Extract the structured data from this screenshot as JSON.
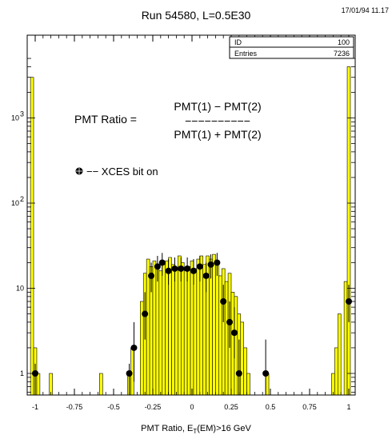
{
  "chart_data": {
    "type": "histogram",
    "title": "Run 54580, L=0.5E30",
    "timestamp": "17/01/94  11.17",
    "xlabel": "PMT Ratio, E",
    "xlabel_sub": "T",
    "xlabel_suffix": "(EM)>16 GeV",
    "xlim": [
      -1.05,
      1.05
    ],
    "ylim": [
      0.5,
      5000
    ],
    "yscale": "log",
    "x_ticks": [
      {
        "value": -1,
        "label": "-1"
      },
      {
        "value": -0.75,
        "label": "-0.75"
      },
      {
        "value": -0.5,
        "label": "-0.5"
      },
      {
        "value": -0.25,
        "label": "-0.25"
      },
      {
        "value": 0,
        "label": "0"
      },
      {
        "value": 0.25,
        "label": "0.25"
      },
      {
        "value": 0.5,
        "label": "0.5"
      },
      {
        "value": 0.75,
        "label": "0.75"
      },
      {
        "value": 1,
        "label": "1"
      }
    ],
    "y_ticks": [
      {
        "value": 1,
        "base": "1",
        "exp": ""
      },
      {
        "value": 10,
        "base": "10",
        "exp": ""
      },
      {
        "value": 100,
        "base": "10",
        "exp": "2"
      },
      {
        "value": 1000,
        "base": "10",
        "exp": "3"
      }
    ],
    "stats_box": {
      "rows": [
        {
          "label": "ID",
          "value": "100"
        },
        {
          "label": "Entries",
          "value": "7236"
        }
      ]
    },
    "formula": {
      "lhs": "PMT Ratio =",
      "numerator": "PMT(1) − PMT(2)",
      "dashes": "−−−−−−−−−−",
      "denominator": "PMT(1) + PMT(2)"
    },
    "legend": {
      "text": "−− XCES bit on"
    },
    "colors": {
      "histogram_fill": "#ffff00",
      "markers": "#000000"
    },
    "series": [
      {
        "type": "histogram",
        "bin_width": 0.02,
        "bins": [
          {
            "x": -1.02,
            "y": 3000
          },
          {
            "x": -1.0,
            "y": 2
          },
          {
            "x": -0.98,
            "y": 1
          },
          {
            "x": -0.9,
            "y": 1
          },
          {
            "x": -0.58,
            "y": 1
          },
          {
            "x": -0.4,
            "y": 1
          },
          {
            "x": -0.38,
            "y": 2
          },
          {
            "x": -0.32,
            "y": 7
          },
          {
            "x": -0.3,
            "y": 15
          },
          {
            "x": -0.28,
            "y": 22
          },
          {
            "x": -0.26,
            "y": 18
          },
          {
            "x": -0.24,
            "y": 21
          },
          {
            "x": -0.22,
            "y": 19
          },
          {
            "x": -0.2,
            "y": 16
          },
          {
            "x": -0.18,
            "y": 19
          },
          {
            "x": -0.16,
            "y": 21
          },
          {
            "x": -0.14,
            "y": 23
          },
          {
            "x": -0.12,
            "y": 19
          },
          {
            "x": -0.1,
            "y": 17
          },
          {
            "x": -0.08,
            "y": 24
          },
          {
            "x": -0.06,
            "y": 20
          },
          {
            "x": -0.04,
            "y": 16
          },
          {
            "x": -0.02,
            "y": 18
          },
          {
            "x": 0.0,
            "y": 21
          },
          {
            "x": 0.02,
            "y": 17
          },
          {
            "x": 0.04,
            "y": 22
          },
          {
            "x": 0.06,
            "y": 24
          },
          {
            "x": 0.08,
            "y": 19
          },
          {
            "x": 0.1,
            "y": 24
          },
          {
            "x": 0.12,
            "y": 22
          },
          {
            "x": 0.14,
            "y": 25
          },
          {
            "x": 0.16,
            "y": 20
          },
          {
            "x": 0.18,
            "y": 14
          },
          {
            "x": 0.2,
            "y": 17
          },
          {
            "x": 0.22,
            "y": 12
          },
          {
            "x": 0.24,
            "y": 15
          },
          {
            "x": 0.26,
            "y": 9
          },
          {
            "x": 0.28,
            "y": 8
          },
          {
            "x": 0.3,
            "y": 5
          },
          {
            "x": 0.32,
            "y": 4
          },
          {
            "x": 0.34,
            "y": 2
          },
          {
            "x": 0.36,
            "y": 1
          },
          {
            "x": 0.48,
            "y": 1
          },
          {
            "x": 0.9,
            "y": 1
          },
          {
            "x": 0.92,
            "y": 2
          },
          {
            "x": 0.94,
            "y": 5
          },
          {
            "x": 0.98,
            "y": 12
          },
          {
            "x": 1.0,
            "y": 4000
          }
        ]
      },
      {
        "type": "scatter",
        "name": "XCES bit on",
        "points": [
          {
            "x": -1.0,
            "y": 1,
            "err_hi": 1.3,
            "err_lo": 0
          },
          {
            "x": -0.4,
            "y": 1,
            "err_hi": 1.3,
            "err_lo": 0
          },
          {
            "x": -0.37,
            "y": 2,
            "err_hi": 4,
            "err_lo": 0.8
          },
          {
            "x": -0.3,
            "y": 5,
            "err_hi": 9,
            "err_lo": 2.5
          },
          {
            "x": -0.26,
            "y": 14,
            "err_hi": 20,
            "err_lo": 9
          },
          {
            "x": -0.22,
            "y": 18,
            "err_hi": 24,
            "err_lo": 12
          },
          {
            "x": -0.19,
            "y": 20,
            "err_hi": 26,
            "err_lo": 14
          },
          {
            "x": -0.15,
            "y": 16,
            "err_hi": 22,
            "err_lo": 11
          },
          {
            "x": -0.11,
            "y": 17,
            "err_hi": 23,
            "err_lo": 12
          },
          {
            "x": -0.07,
            "y": 17,
            "err_hi": 23,
            "err_lo": 12
          },
          {
            "x": -0.03,
            "y": 17,
            "err_hi": 23,
            "err_lo": 12
          },
          {
            "x": 0.01,
            "y": 16,
            "err_hi": 22,
            "err_lo": 11
          },
          {
            "x": 0.05,
            "y": 18,
            "err_hi": 24,
            "err_lo": 12
          },
          {
            "x": 0.09,
            "y": 14,
            "err_hi": 20,
            "err_lo": 9
          },
          {
            "x": 0.12,
            "y": 19,
            "err_hi": 25,
            "err_lo": 13
          },
          {
            "x": 0.16,
            "y": 20,
            "err_hi": 26,
            "err_lo": 14
          },
          {
            "x": 0.2,
            "y": 7,
            "err_hi": 11,
            "err_lo": 4
          },
          {
            "x": 0.24,
            "y": 4,
            "err_hi": 7,
            "err_lo": 2
          },
          {
            "x": 0.27,
            "y": 3,
            "err_hi": 6,
            "err_lo": 1.5
          },
          {
            "x": 0.3,
            "y": 1,
            "err_hi": 2.5,
            "err_lo": 0
          },
          {
            "x": 0.47,
            "y": 1,
            "err_hi": 2.5,
            "err_lo": 0
          },
          {
            "x": 1.0,
            "y": 7,
            "err_hi": 11,
            "err_lo": 4
          }
        ]
      }
    ]
  }
}
